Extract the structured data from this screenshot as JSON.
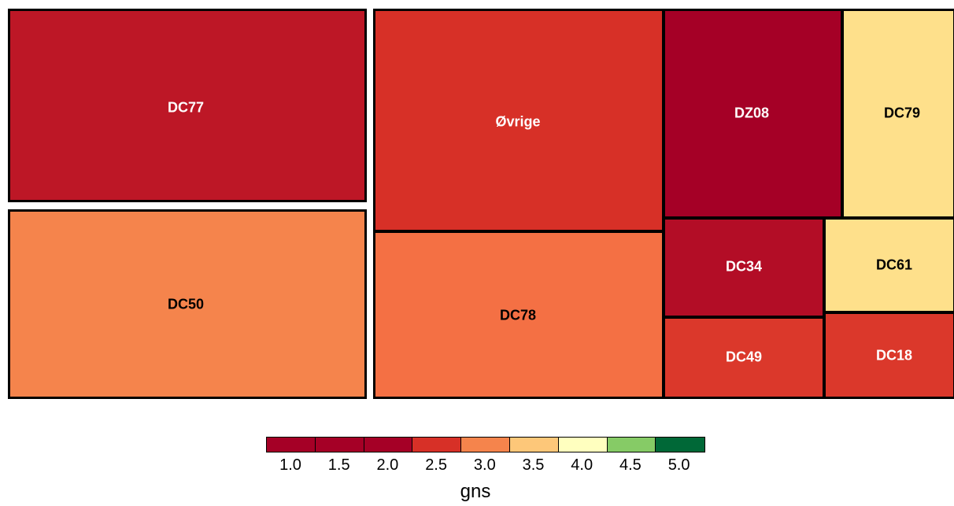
{
  "chart_data": {
    "type": "treemap",
    "color_variable": "gns",
    "tiles": [
      {
        "label": "DC77",
        "gns": 1.5,
        "color": "#bd1726",
        "text_color": "#ffffff"
      },
      {
        "label": "DC50",
        "gns": 3.0,
        "color": "#f5844c",
        "text_color": "#000000"
      },
      {
        "label": "Øvrige",
        "gns": 2.5,
        "color": "#d73027",
        "text_color": "#ffffff"
      },
      {
        "label": "DC78",
        "gns": 2.8,
        "color": "#f47044",
        "text_color": "#000000"
      },
      {
        "label": "DZ08",
        "gns": 1.0,
        "color": "#a50026",
        "text_color": "#ffffff"
      },
      {
        "label": "DC79",
        "gns": 3.5,
        "color": "#fee08b",
        "text_color": "#000000"
      },
      {
        "label": "DC34",
        "gns": 1.5,
        "color": "#b30d26",
        "text_color": "#ffffff"
      },
      {
        "label": "DC61",
        "gns": 3.5,
        "color": "#fee08b",
        "text_color": "#000000"
      },
      {
        "label": "DC49",
        "gns": 2.5,
        "color": "#db382b",
        "text_color": "#ffffff"
      },
      {
        "label": "DC18",
        "gns": 2.5,
        "color": "#db382b",
        "text_color": "#ffffff"
      }
    ],
    "legend": {
      "title": "gns",
      "ticks": [
        "1.0",
        "1.5",
        "2.0",
        "2.5",
        "3.0",
        "3.5",
        "4.0",
        "4.5",
        "5.0"
      ],
      "colors": [
        "#a50026",
        "#a50026",
        "#a50026",
        "#d73027",
        "#f5844c",
        "#fdc779",
        "#ffffbf",
        "#86cb66",
        "#006837"
      ]
    }
  }
}
